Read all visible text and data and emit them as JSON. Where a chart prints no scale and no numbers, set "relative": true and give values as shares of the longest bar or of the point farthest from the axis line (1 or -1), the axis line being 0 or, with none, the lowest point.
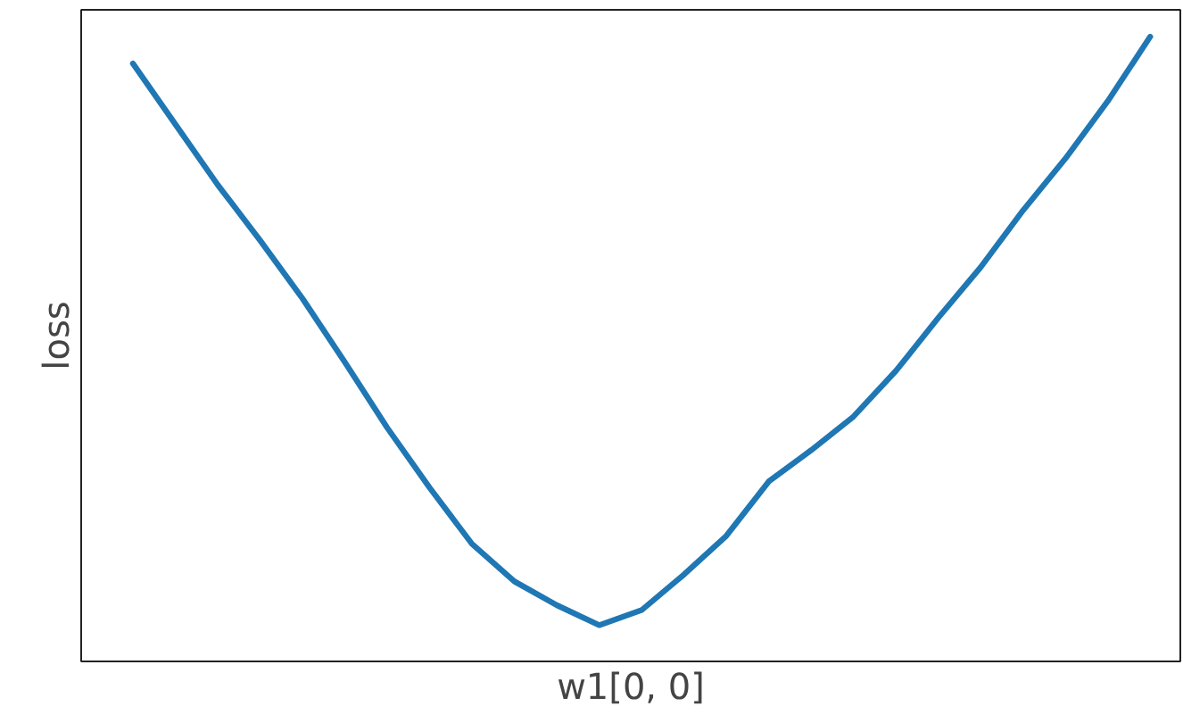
{
  "chart_data": {
    "type": "line",
    "relative": true,
    "xlabel": "w1[0, 0]",
    "ylabel": "loss",
    "categories": [
      null,
      null,
      null,
      null,
      null,
      null,
      null,
      null,
      null,
      null,
      null,
      null,
      null,
      null,
      null,
      null,
      null,
      null,
      null,
      null,
      null,
      null,
      null,
      null,
      null
    ],
    "series": [
      {
        "color": "#1f77b4",
        "values": [
          0.957,
          0.86,
          0.763,
          0.674,
          0.581,
          0.479,
          0.374,
          0.278,
          0.188,
          0.128,
          0.09,
          0.058,
          0.082,
          0.139,
          0.201,
          0.288,
          0.338,
          0.392,
          0.465,
          0.55,
          0.631,
          0.722,
          0.805,
          0.897,
          1.0
        ]
      }
    ]
  }
}
